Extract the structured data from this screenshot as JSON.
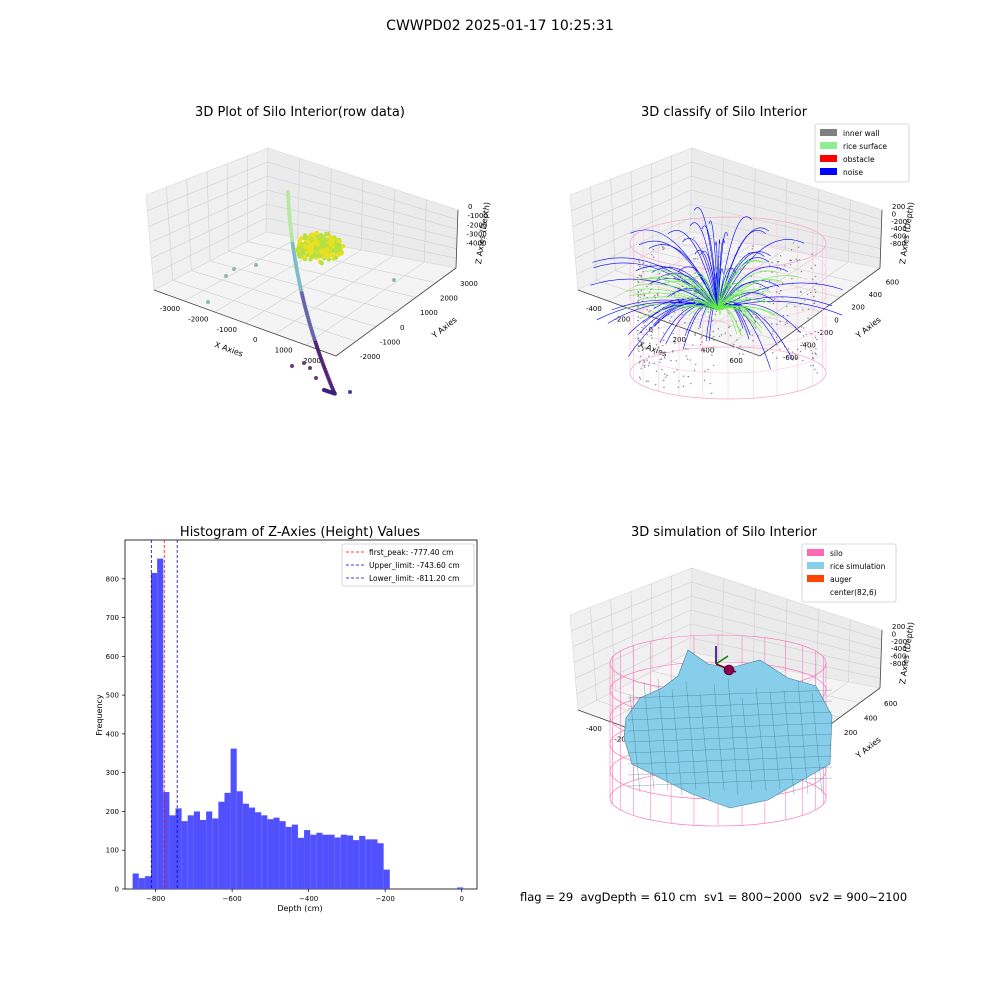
{
  "figure": {
    "suptitle": "CWWPD02 2025-01-17 10:25:31",
    "footer": "flag = 29  avgDepth = 610 cm  sv1 = 800~2000  sv2 = 900~2100"
  },
  "panels": {
    "p1": {
      "title": "3D Plot of Silo Interior(row data)",
      "xlabel": "X Axies",
      "ylabel": "Y Axies",
      "zlabel": "Z Axies (Depth)",
      "xticks": [
        "-3000",
        "-2000",
        "-1000",
        "0",
        "1000",
        "2000"
      ],
      "yticks": [
        "-2000",
        "-1000",
        "0",
        "1000",
        "2000",
        "3000"
      ],
      "zticks": [
        "0",
        "-1000",
        "-2000",
        "-3000",
        "-4000"
      ]
    },
    "p2": {
      "title": "3D classify of Silo Interior",
      "xlabel": "X Axies",
      "ylabel": "Y Axies",
      "zlabel": "Z Axies (Depth)",
      "xticks": [
        "-400",
        "-200",
        "0",
        "200",
        "400",
        "600"
      ],
      "yticks": [
        "-600",
        "-400",
        "-200",
        "0",
        "200",
        "400",
        "600"
      ],
      "zticks": [
        "200",
        "0",
        "-200",
        "-400",
        "-600",
        "-800"
      ],
      "legend": [
        {
          "label": "inner wall",
          "color": "#808080"
        },
        {
          "label": "rice surface",
          "color": "#90ee90"
        },
        {
          "label": "obstacle",
          "color": "#ff0000"
        },
        {
          "label": "noise",
          "color": "#0000ff"
        }
      ]
    },
    "p4": {
      "title": "3D simulation of Silo Interior",
      "xlabel": "X Axies",
      "ylabel": "Y Axies",
      "zlabel": "Z Axies (Depth)",
      "xticks": [
        "-400",
        "-200",
        "0",
        "200",
        "400",
        "600"
      ],
      "yticks": [
        "-400",
        "-200",
        "0",
        "200",
        "400",
        "600"
      ],
      "zticks": [
        "200",
        "0",
        "-200",
        "-400",
        "-600",
        "-800"
      ],
      "legend": [
        {
          "label": "silo",
          "color": "#ff69b4"
        },
        {
          "label": "rice simulation",
          "color": "#87ceeb"
        },
        {
          "label": "auger",
          "color": "#ff4500"
        },
        {
          "label": "center(82,6)",
          "color": ""
        }
      ]
    }
  },
  "chart_data": [
    {
      "type": "bar",
      "title": "Histogram of Z-Axies (Height) Values",
      "xlabel": "Depth (cm)",
      "ylabel": "Frequency",
      "xlim": [
        -880,
        40
      ],
      "ylim": [
        0,
        900
      ],
      "xticks": [
        -800,
        -600,
        -400,
        -200,
        0
      ],
      "yticks": [
        0,
        100,
        200,
        300,
        400,
        500,
        600,
        700,
        800
      ],
      "bin_width": 16,
      "bins": [
        {
          "x": -852,
          "y": 40
        },
        {
          "x": -836,
          "y": 28
        },
        {
          "x": -820,
          "y": 33
        },
        {
          "x": -804,
          "y": 815
        },
        {
          "x": -788,
          "y": 852
        },
        {
          "x": -772,
          "y": 250
        },
        {
          "x": -756,
          "y": 190
        },
        {
          "x": -740,
          "y": 208
        },
        {
          "x": -724,
          "y": 175
        },
        {
          "x": -708,
          "y": 190
        },
        {
          "x": -692,
          "y": 200
        },
        {
          "x": -676,
          "y": 178
        },
        {
          "x": -660,
          "y": 200
        },
        {
          "x": -644,
          "y": 182
        },
        {
          "x": -628,
          "y": 225
        },
        {
          "x": -612,
          "y": 248
        },
        {
          "x": -596,
          "y": 362
        },
        {
          "x": -580,
          "y": 252
        },
        {
          "x": -564,
          "y": 220
        },
        {
          "x": -548,
          "y": 210
        },
        {
          "x": -532,
          "y": 198
        },
        {
          "x": -516,
          "y": 190
        },
        {
          "x": -500,
          "y": 180
        },
        {
          "x": -484,
          "y": 184
        },
        {
          "x": -468,
          "y": 175
        },
        {
          "x": -452,
          "y": 160
        },
        {
          "x": -436,
          "y": 166
        },
        {
          "x": -420,
          "y": 132
        },
        {
          "x": -404,
          "y": 152
        },
        {
          "x": -388,
          "y": 140
        },
        {
          "x": -372,
          "y": 145
        },
        {
          "x": -356,
          "y": 140
        },
        {
          "x": -340,
          "y": 140
        },
        {
          "x": -324,
          "y": 133
        },
        {
          "x": -308,
          "y": 140
        },
        {
          "x": -292,
          "y": 138
        },
        {
          "x": -276,
          "y": 126
        },
        {
          "x": -260,
          "y": 137
        },
        {
          "x": -244,
          "y": 128
        },
        {
          "x": -228,
          "y": 128
        },
        {
          "x": -212,
          "y": 118
        },
        {
          "x": -196,
          "y": 50
        },
        {
          "x": -4,
          "y": 4
        }
      ],
      "bar_color": "#5050ff",
      "vlines": [
        {
          "label": "first_peak: -777.40 cm",
          "x": -777.4,
          "color": "#ff0000"
        },
        {
          "label": "Upper_limit: -743.60 cm",
          "x": -743.6,
          "color": "#0000cc"
        },
        {
          "label": "Lower_limit: -811.20 cm",
          "x": -811.2,
          "color": "#0000cc"
        }
      ]
    }
  ]
}
